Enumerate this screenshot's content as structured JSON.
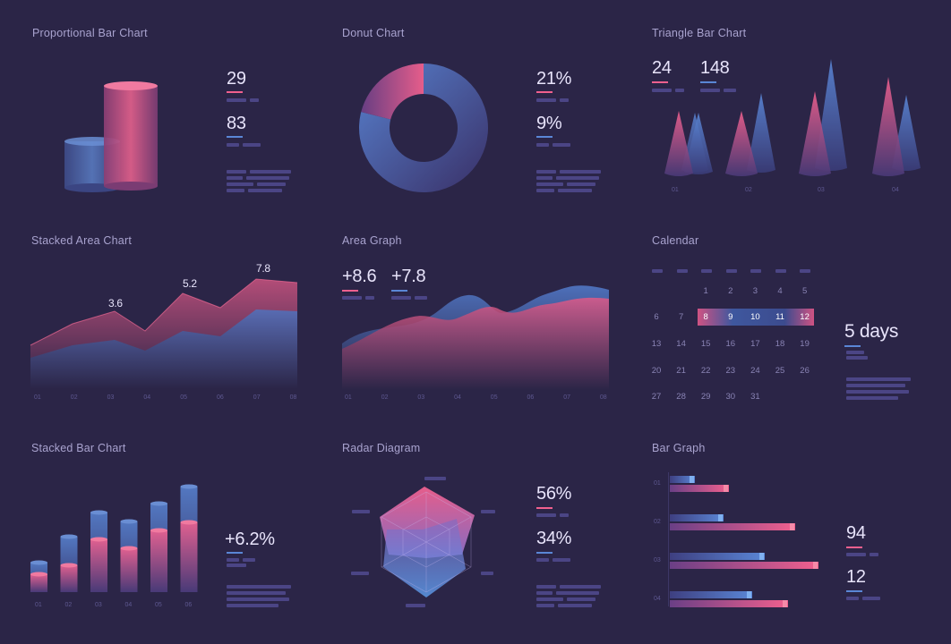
{
  "colors": {
    "background": "#2b2547",
    "pink": "#f0608e",
    "blue": "#5a86d6",
    "text": "#e8e4fb",
    "muted": "#a9a3cf"
  },
  "proportional": {
    "title": "Proportional Bar Chart",
    "stat1": "29",
    "stat2": "83"
  },
  "donut": {
    "title": "Donut Chart",
    "stat1": "21%",
    "stat2": "9%",
    "chart_data": {
      "type": "pie",
      "values": [
        21,
        79
      ]
    }
  },
  "triangle": {
    "title": "Triangle Bar Chart",
    "stat1": "24",
    "stat2": "148",
    "ticks": [
      "01",
      "02",
      "03",
      "04"
    ]
  },
  "stacked_area": {
    "title": "Stacked Area Chart",
    "labels": [
      "3.6",
      "5.2",
      "7.8"
    ],
    "ticks": [
      "01",
      "02",
      "03",
      "04",
      "05",
      "06",
      "07",
      "08"
    ]
  },
  "area_graph": {
    "title": "Area Graph",
    "stat1": "+8.6",
    "stat2": "+7.8",
    "ticks": [
      "01",
      "02",
      "03",
      "04",
      "05",
      "06",
      "07",
      "08"
    ]
  },
  "calendar": {
    "title": "Calendar",
    "days": [
      [
        "",
        "",
        "",
        "1",
        "2",
        "3",
        "4",
        "5"
      ],
      [
        "6",
        "7",
        "8",
        "9",
        "10",
        "11",
        "12"
      ],
      [
        "13",
        "14",
        "15",
        "16",
        "17",
        "18",
        "19"
      ],
      [
        "20",
        "21",
        "22",
        "23",
        "24",
        "25",
        "26"
      ],
      [
        "27",
        "28",
        "29",
        "30",
        "31"
      ]
    ],
    "highlight": [
      "8",
      "9",
      "10",
      "11",
      "12"
    ],
    "summary": "5 days"
  },
  "stacked_bar": {
    "title": "Stacked Bar Chart",
    "stat": "+6.2%",
    "ticks": [
      "01",
      "02",
      "03",
      "04",
      "05",
      "06"
    ]
  },
  "radar": {
    "title": "Radar Diagram",
    "stat1": "56%",
    "stat2": "34%"
  },
  "bar_graph": {
    "title": "Bar Graph",
    "stat1": "94",
    "stat2": "12",
    "ticks": [
      "01",
      "02",
      "03",
      "04"
    ]
  }
}
